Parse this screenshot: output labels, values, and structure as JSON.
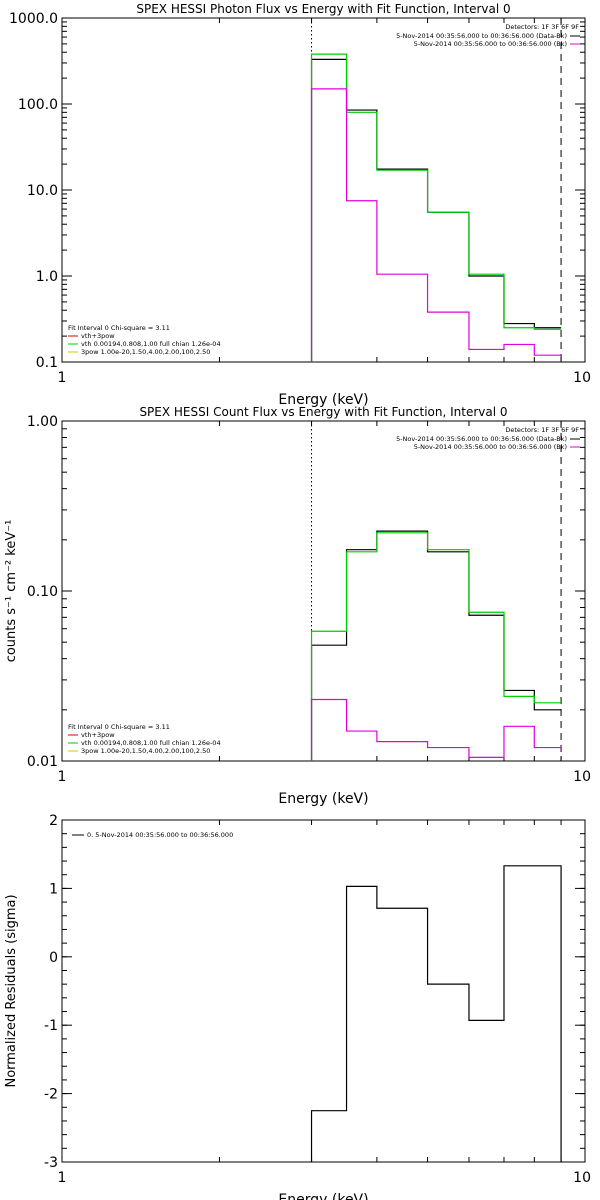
{
  "chart_data": [
    {
      "type": "line",
      "title": "SPEX HESSI Photon Flux vs Energy with Fit Function, Interval 0",
      "xlabel": "Energy (keV)",
      "ylabel": "",
      "xscale": "log",
      "yscale": "log",
      "xlim": [
        1,
        10
      ],
      "ylim": [
        0.1,
        1000.0
      ],
      "x_ticks": [
        "1",
        "10"
      ],
      "y_ticks": [
        "0.1",
        "1.0",
        "10.0",
        "100.0",
        "1000.0"
      ],
      "x_edges": [
        3.0,
        3.5,
        4.0,
        5.0,
        6.0,
        7.0,
        8.0,
        9.0
      ],
      "series": [
        {
          "color": "#000000",
          "values": [
            330,
            85,
            17.5,
            5.5,
            1.0,
            0.28,
            0.25
          ]
        },
        {
          "color": "#00cc00",
          "values": [
            380,
            80,
            17.0,
            5.5,
            1.05,
            0.25,
            0.24
          ]
        },
        {
          "color": "#e000e0",
          "values": [
            150,
            7.5,
            1.05,
            0.38,
            0.14,
            0.16,
            0.12
          ]
        }
      ],
      "vlines": [
        {
          "x": 3.0,
          "style": "dotted"
        },
        {
          "x": 9.0,
          "style": "dashed"
        }
      ],
      "legend_top_right": {
        "header": "Detectors: 1F 3F 6F 9F",
        "lines": [
          {
            "text": "5-Nov-2014 00:35:56.000 to 00:36:56.000 (Data-Bk)",
            "color": "#000000"
          },
          {
            "text": "5-Nov-2014 00:35:56.000 to 00:36:56.000 (Bk)",
            "color": "#e000e0"
          }
        ]
      },
      "legend_bottom_left": {
        "header": "Fit Interval 0   Chi-square = 3.11",
        "lines": [
          {
            "text": "vth+3pow",
            "color": "#e00000"
          },
          {
            "text": "vth 0.00194,0.808,1.00  full chian 1.26e-04",
            "color": "#00cc00"
          },
          {
            "text": "3pow 1.00e-20,1.50,4.00,2.00,100,2.50",
            "color": "#cccc00"
          }
        ]
      }
    },
    {
      "type": "line",
      "title": "SPEX HESSI Count Flux vs Energy with Fit Function, Interval 0",
      "xlabel": "Energy (keV)",
      "ylabel": "counts s⁻¹ cm⁻² keV⁻¹",
      "xscale": "log",
      "yscale": "log",
      "xlim": [
        1,
        10
      ],
      "ylim": [
        0.01,
        1.0
      ],
      "x_ticks": [
        "1",
        "10"
      ],
      "y_ticks": [
        "0.01",
        "0.10",
        "1.00"
      ],
      "x_edges": [
        3.0,
        3.5,
        4.0,
        5.0,
        6.0,
        7.0,
        8.0,
        9.0
      ],
      "series": [
        {
          "color": "#000000",
          "values": [
            0.048,
            0.175,
            0.225,
            0.17,
            0.072,
            0.026,
            0.02
          ]
        },
        {
          "color": "#00cc00",
          "values": [
            0.058,
            0.17,
            0.22,
            0.175,
            0.075,
            0.024,
            0.022
          ]
        },
        {
          "color": "#e000e0",
          "values": [
            0.023,
            0.015,
            0.013,
            0.012,
            0.0105,
            0.016,
            0.012
          ]
        }
      ],
      "vlines": [
        {
          "x": 3.0,
          "style": "dotted"
        },
        {
          "x": 9.0,
          "style": "dashed"
        }
      ],
      "legend_top_right": {
        "header": "Detectors: 1F 3F 6F 9F",
        "lines": [
          {
            "text": "5-Nov-2014 00:35:56.000 to 00:36:56.000 (Data-Bk)",
            "color": "#000000"
          },
          {
            "text": "5-Nov-2014 00:35:56.000 to 00:36:56.000 (Bk)",
            "color": "#e000e0"
          }
        ]
      },
      "legend_bottom_left": {
        "header": "Fit Interval 0   Chi-square = 3.11",
        "lines": [
          {
            "text": "vth+3pow",
            "color": "#e00000"
          },
          {
            "text": "vth 0.00194,0.808,1.00  full chian 1.26e-04",
            "color": "#00cc00"
          },
          {
            "text": "3pow 1.00e-20,1.50,4.00,2.00,100,2.50",
            "color": "#cccc00"
          }
        ]
      }
    },
    {
      "type": "line",
      "title": "",
      "xlabel": "Energy (keV)",
      "ylabel": "Normalized Residuals (sigma)",
      "xscale": "log",
      "yscale": "linear",
      "xlim": [
        1,
        10
      ],
      "ylim": [
        -3,
        2
      ],
      "x_ticks": [
        "1",
        "10"
      ],
      "y_ticks": [
        "-3",
        "-2",
        "-1",
        "0",
        "1",
        "2"
      ],
      "x_edges": [
        3.0,
        3.5,
        4.0,
        5.0,
        6.0,
        7.0,
        8.0,
        9.0
      ],
      "series": [
        {
          "color": "#000000",
          "values": [
            -2.25,
            1.03,
            0.71,
            -0.4,
            -0.93,
            1.33,
            1.33
          ]
        }
      ],
      "vlines": [],
      "legend_top_left": {
        "lines": [
          {
            "text": "0. 5-Nov-2014 00:35:56.000 to 00:36:56.000",
            "color": "#000000"
          }
        ]
      }
    }
  ]
}
